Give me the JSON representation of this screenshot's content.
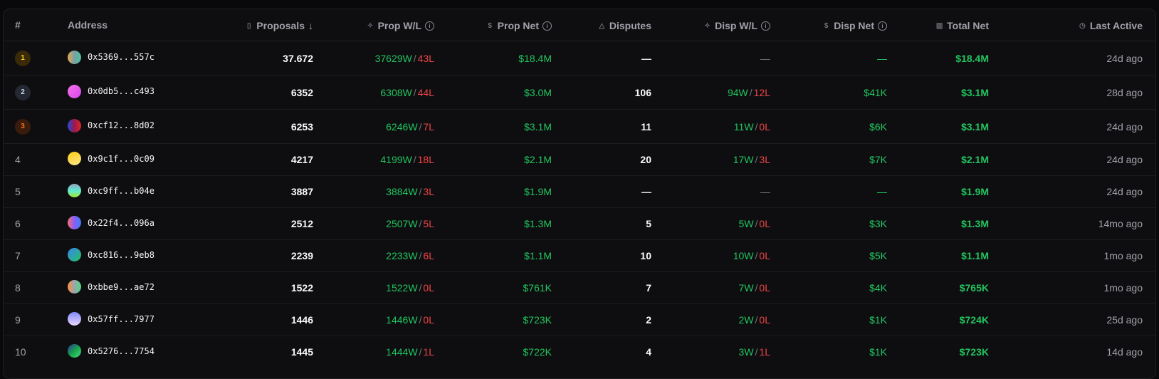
{
  "headers": {
    "rank": "#",
    "address": "Address",
    "proposals": "Proposals",
    "sort_arrow": "↓",
    "prop_wl": "Prop W/L",
    "prop_net": "Prop Net",
    "disputes": "Disputes",
    "disp_wl": "Disp W/L",
    "disp_net": "Disp Net",
    "total_net": "Total Net",
    "last_active": "Last Active"
  },
  "icons": {
    "proposals": "document-icon",
    "prop_wl": "sparkle-icon",
    "prop_net": "dollar-icon",
    "disputes": "warning-triangle-icon",
    "disp_wl": "sparkle-icon",
    "disp_net": "dollar-icon",
    "total_net": "bar-chart-icon",
    "last_active": "clock-icon",
    "info": "info-icon"
  },
  "colors": {
    "win": "#22c55e",
    "loss": "#ef4444",
    "gold": "#facc15",
    "silver": "#cbd5e1",
    "bronze": "#f97316"
  },
  "rows": [
    {
      "rank": "1",
      "address": "0x5369...557c",
      "proposals": "37.672",
      "prop_w": "37629W",
      "prop_l": "43L",
      "prop_net": "$18.4M",
      "disputes": "—",
      "disp_w": "",
      "disp_l": "",
      "disp_wl_empty": "—",
      "disp_net": "—",
      "total_net": "$18.4M",
      "last_active": "24d ago"
    },
    {
      "rank": "2",
      "address": "0x0db5...c493",
      "proposals": "6352",
      "prop_w": "6308W",
      "prop_l": "44L",
      "prop_net": "$3.0M",
      "disputes": "106",
      "disp_w": "94W",
      "disp_l": "12L",
      "disp_wl_empty": "",
      "disp_net": "$41K",
      "total_net": "$3.1M",
      "last_active": "28d ago"
    },
    {
      "rank": "3",
      "address": "0xcf12...8d02",
      "proposals": "6253",
      "prop_w": "6246W",
      "prop_l": "7L",
      "prop_net": "$3.1M",
      "disputes": "11",
      "disp_w": "11W",
      "disp_l": "0L",
      "disp_wl_empty": "",
      "disp_net": "$6K",
      "total_net": "$3.1M",
      "last_active": "24d ago"
    },
    {
      "rank": "4",
      "address": "0x9c1f...0c09",
      "proposals": "4217",
      "prop_w": "4199W",
      "prop_l": "18L",
      "prop_net": "$2.1M",
      "disputes": "20",
      "disp_w": "17W",
      "disp_l": "3L",
      "disp_wl_empty": "",
      "disp_net": "$7K",
      "total_net": "$2.1M",
      "last_active": "24d ago"
    },
    {
      "rank": "5",
      "address": "0xc9ff...b04e",
      "proposals": "3887",
      "prop_w": "3884W",
      "prop_l": "3L",
      "prop_net": "$1.9M",
      "disputes": "—",
      "disp_w": "",
      "disp_l": "",
      "disp_wl_empty": "—",
      "disp_net": "—",
      "total_net": "$1.9M",
      "last_active": "24d ago"
    },
    {
      "rank": "6",
      "address": "0x22f4...096a",
      "proposals": "2512",
      "prop_w": "2507W",
      "prop_l": "5L",
      "prop_net": "$1.3M",
      "disputes": "5",
      "disp_w": "5W",
      "disp_l": "0L",
      "disp_wl_empty": "",
      "disp_net": "$3K",
      "total_net": "$1.3M",
      "last_active": "14mo ago"
    },
    {
      "rank": "7",
      "address": "0xc816...9eb8",
      "proposals": "2239",
      "prop_w": "2233W",
      "prop_l": "6L",
      "prop_net": "$1.1M",
      "disputes": "10",
      "disp_w": "10W",
      "disp_l": "0L",
      "disp_wl_empty": "",
      "disp_net": "$5K",
      "total_net": "$1.1M",
      "last_active": "1mo ago"
    },
    {
      "rank": "8",
      "address": "0xbbe9...ae72",
      "proposals": "1522",
      "prop_w": "1522W",
      "prop_l": "0L",
      "prop_net": "$761K",
      "disputes": "7",
      "disp_w": "7W",
      "disp_l": "0L",
      "disp_wl_empty": "",
      "disp_net": "$4K",
      "total_net": "$765K",
      "last_active": "1mo ago"
    },
    {
      "rank": "9",
      "address": "0x57ff...7977",
      "proposals": "1446",
      "prop_w": "1446W",
      "prop_l": "0L",
      "prop_net": "$723K",
      "disputes": "2",
      "disp_w": "2W",
      "disp_l": "0L",
      "disp_wl_empty": "",
      "disp_net": "$1K",
      "total_net": "$724K",
      "last_active": "25d ago"
    },
    {
      "rank": "10",
      "address": "0x5276...7754",
      "proposals": "1445",
      "prop_w": "1444W",
      "prop_l": "1L",
      "prop_net": "$722K",
      "disputes": "4",
      "disp_w": "3W",
      "disp_l": "1L",
      "disp_wl_empty": "",
      "disp_net": "$1K",
      "total_net": "$723K",
      "last_active": "14d ago"
    }
  ]
}
